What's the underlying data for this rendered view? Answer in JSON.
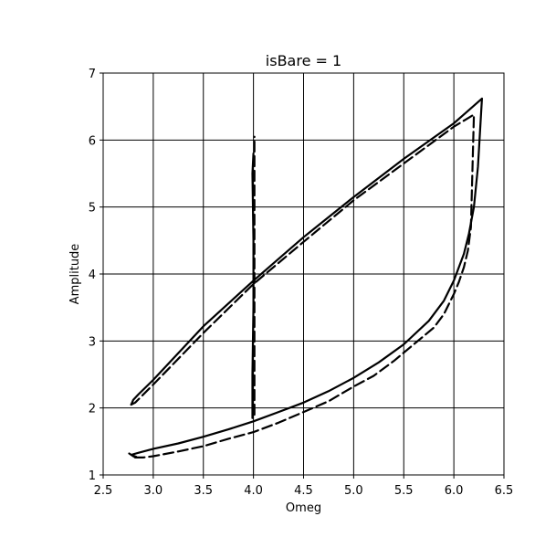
{
  "chart_data": {
    "type": "line",
    "title": "isBare = 1",
    "xlabel": "Omeg",
    "ylabel": "Amplitude",
    "xlim": [
      2.5,
      6.5
    ],
    "ylim": [
      1,
      7
    ],
    "xticks": [
      "2.5",
      "3.0",
      "3.5",
      "4.0",
      "4.5",
      "5.0",
      "5.5",
      "6.0",
      "6.5"
    ],
    "yticks": [
      "1",
      "2",
      "3",
      "4",
      "5",
      "6",
      "7"
    ],
    "grid": true,
    "colors": {
      "line": "#000000",
      "grid": "#000000"
    },
    "series": [
      {
        "style": "solid",
        "x": [
          2.78,
          2.8,
          2.85,
          3.0,
          3.5,
          4.0,
          4.5,
          5.0,
          5.5,
          6.0,
          6.28,
          6.24,
          6.2,
          6.15,
          6.1,
          6.0,
          5.9,
          5.75,
          5.5,
          5.25,
          5.0,
          4.75,
          4.5,
          4.25,
          4.0,
          3.75,
          3.5,
          3.25,
          3.0,
          2.85,
          2.78,
          2.8,
          2.83,
          2.78
        ],
        "y": [
          2.05,
          2.12,
          2.2,
          2.42,
          3.22,
          3.9,
          4.55,
          5.15,
          5.72,
          6.25,
          6.62,
          5.6,
          5.0,
          4.6,
          4.3,
          3.9,
          3.6,
          3.3,
          2.95,
          2.68,
          2.45,
          2.25,
          2.08,
          1.94,
          1.8,
          1.68,
          1.57,
          1.47,
          1.39,
          1.33,
          1.3,
          1.28,
          1.27,
          1.3
        ]
      },
      {
        "style": "dashed",
        "x": [
          2.78,
          2.82,
          3.0,
          3.5,
          4.0,
          4.5,
          5.0,
          5.5,
          6.0,
          6.2,
          6.17,
          6.14,
          6.1,
          6.05,
          6.0,
          5.9,
          5.8,
          5.6,
          5.4,
          5.2,
          5.0,
          4.75,
          4.5,
          4.25,
          4.0,
          3.75,
          3.5,
          3.25,
          3.0,
          2.9,
          2.82,
          2.76
        ],
        "y": [
          2.05,
          2.08,
          2.35,
          3.12,
          3.85,
          4.48,
          5.1,
          5.65,
          6.2,
          6.38,
          4.7,
          4.35,
          4.1,
          3.88,
          3.7,
          3.4,
          3.2,
          2.95,
          2.7,
          2.48,
          2.32,
          2.1,
          1.94,
          1.78,
          1.64,
          1.54,
          1.43,
          1.35,
          1.28,
          1.26,
          1.26,
          1.32
        ]
      },
      {
        "style": "solid",
        "x": [
          3.99,
          3.99,
          4.0,
          4.0,
          3.99,
          4.0
        ],
        "y": [
          1.85,
          2.5,
          3.5,
          4.5,
          5.5,
          5.8
        ]
      },
      {
        "style": "dashed",
        "x": [
          4.01,
          4.01,
          4.01,
          4.01,
          4.01
        ],
        "y": [
          1.9,
          3.0,
          4.2,
          5.4,
          6.05
        ]
      }
    ]
  }
}
